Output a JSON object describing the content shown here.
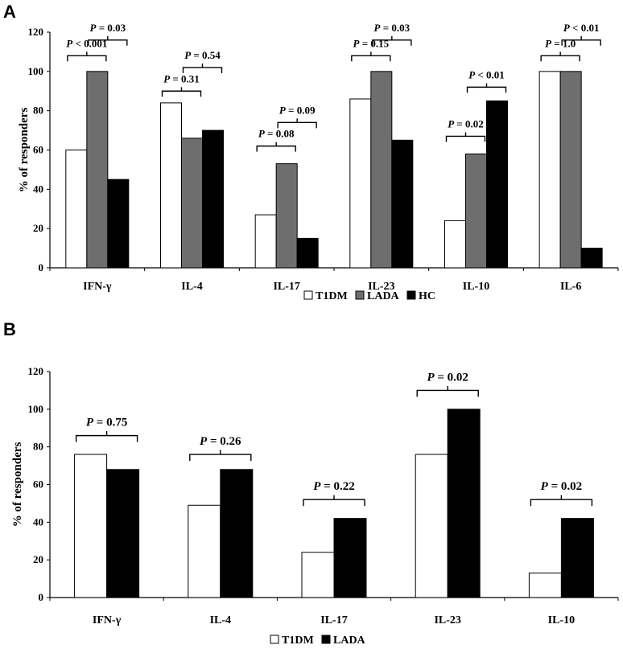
{
  "chart_data": [
    {
      "panel": "A",
      "type": "bar",
      "ylabel": "% of responders",
      "ylim": [
        0,
        120
      ],
      "yticks": [
        0,
        20,
        40,
        60,
        80,
        100,
        120
      ],
      "categories": [
        "IFN-γ",
        "IL-4",
        "IL-17",
        "IL-23",
        "IL-10",
        "IL-6"
      ],
      "series": [
        {
          "name": "T1DM",
          "color": "#ffffff",
          "values": [
            60,
            84,
            27,
            86,
            24,
            100
          ]
        },
        {
          "name": "LADA",
          "color": "#6e6e6e",
          "values": [
            100,
            66,
            53,
            100,
            58,
            100
          ]
        },
        {
          "name": "HC",
          "color": "#000000",
          "values": [
            45,
            70,
            15,
            65,
            85,
            10
          ]
        }
      ],
      "comparisons": [
        {
          "category": 0,
          "pair": "T1DM-LADA",
          "italic": "P",
          "text": " < 0.001",
          "level": 108
        },
        {
          "category": 0,
          "pair": "LADA-HC",
          "italic": "P",
          "text": " = 0.03",
          "level": 116
        },
        {
          "category": 1,
          "pair": "T1DM-LADA",
          "italic": "P",
          "text": " = 0.31",
          "level": 90
        },
        {
          "category": 1,
          "pair": "LADA-HC",
          "italic": "P",
          "text": " = 0.54",
          "level": 102
        },
        {
          "category": 2,
          "pair": "T1DM-LADA",
          "italic": "P",
          "text": " = 0.08",
          "level": 62
        },
        {
          "category": 2,
          "pair": "LADA-HC",
          "italic": "P",
          "text": " = 0.09",
          "level": 74
        },
        {
          "category": 3,
          "pair": "T1DM-LADA",
          "italic": "P",
          "text": " = 0.15",
          "level": 108
        },
        {
          "category": 3,
          "pair": "LADA-HC",
          "italic": "P",
          "text": " = 0.03",
          "level": 116
        },
        {
          "category": 4,
          "pair": "T1DM-LADA",
          "italic": "P",
          "text": " = 0.02",
          "level": 67
        },
        {
          "category": 4,
          "pair": "LADA-HC",
          "italic": "P",
          "text": " < 0.01",
          "level": 92
        },
        {
          "category": 5,
          "pair": "T1DM-LADA",
          "italic": "P",
          "text": " = 1.0",
          "level": 108
        },
        {
          "category": 5,
          "pair": "LADA-HC",
          "italic": "P",
          "text": " < 0.01",
          "level": 116
        }
      ],
      "legend": [
        "T1DM",
        "LADA",
        "HC"
      ]
    },
    {
      "panel": "B",
      "type": "bar",
      "ylabel": "% of responders",
      "ylim": [
        0,
        120
      ],
      "yticks": [
        0,
        20,
        40,
        60,
        80,
        100,
        120
      ],
      "categories": [
        "IFN-γ",
        "IL-4",
        "IL-17",
        "IL-23",
        "IL-10"
      ],
      "series": [
        {
          "name": "T1DM",
          "color": "#ffffff",
          "values": [
            76,
            49,
            24,
            76,
            13
          ]
        },
        {
          "name": "LADA",
          "color": "#000000",
          "values": [
            68,
            68,
            42,
            100,
            42
          ]
        }
      ],
      "comparisons": [
        {
          "category": 0,
          "pair": "T1DM-LADA",
          "italic": "P",
          "text": " = 0.75",
          "level": 86
        },
        {
          "category": 1,
          "pair": "T1DM-LADA",
          "italic": "P",
          "text": " = 0.26",
          "level": 76
        },
        {
          "category": 2,
          "pair": "T1DM-LADA",
          "italic": "P",
          "text": " = 0.22",
          "level": 52
        },
        {
          "category": 3,
          "pair": "T1DM-LADA",
          "italic": "P",
          "text": " = 0.02",
          "level": 110
        },
        {
          "category": 4,
          "pair": "T1DM-LADA",
          "italic": "P",
          "text": " = 0.02",
          "level": 52
        }
      ],
      "legend": [
        "T1DM",
        "LADA"
      ]
    }
  ]
}
